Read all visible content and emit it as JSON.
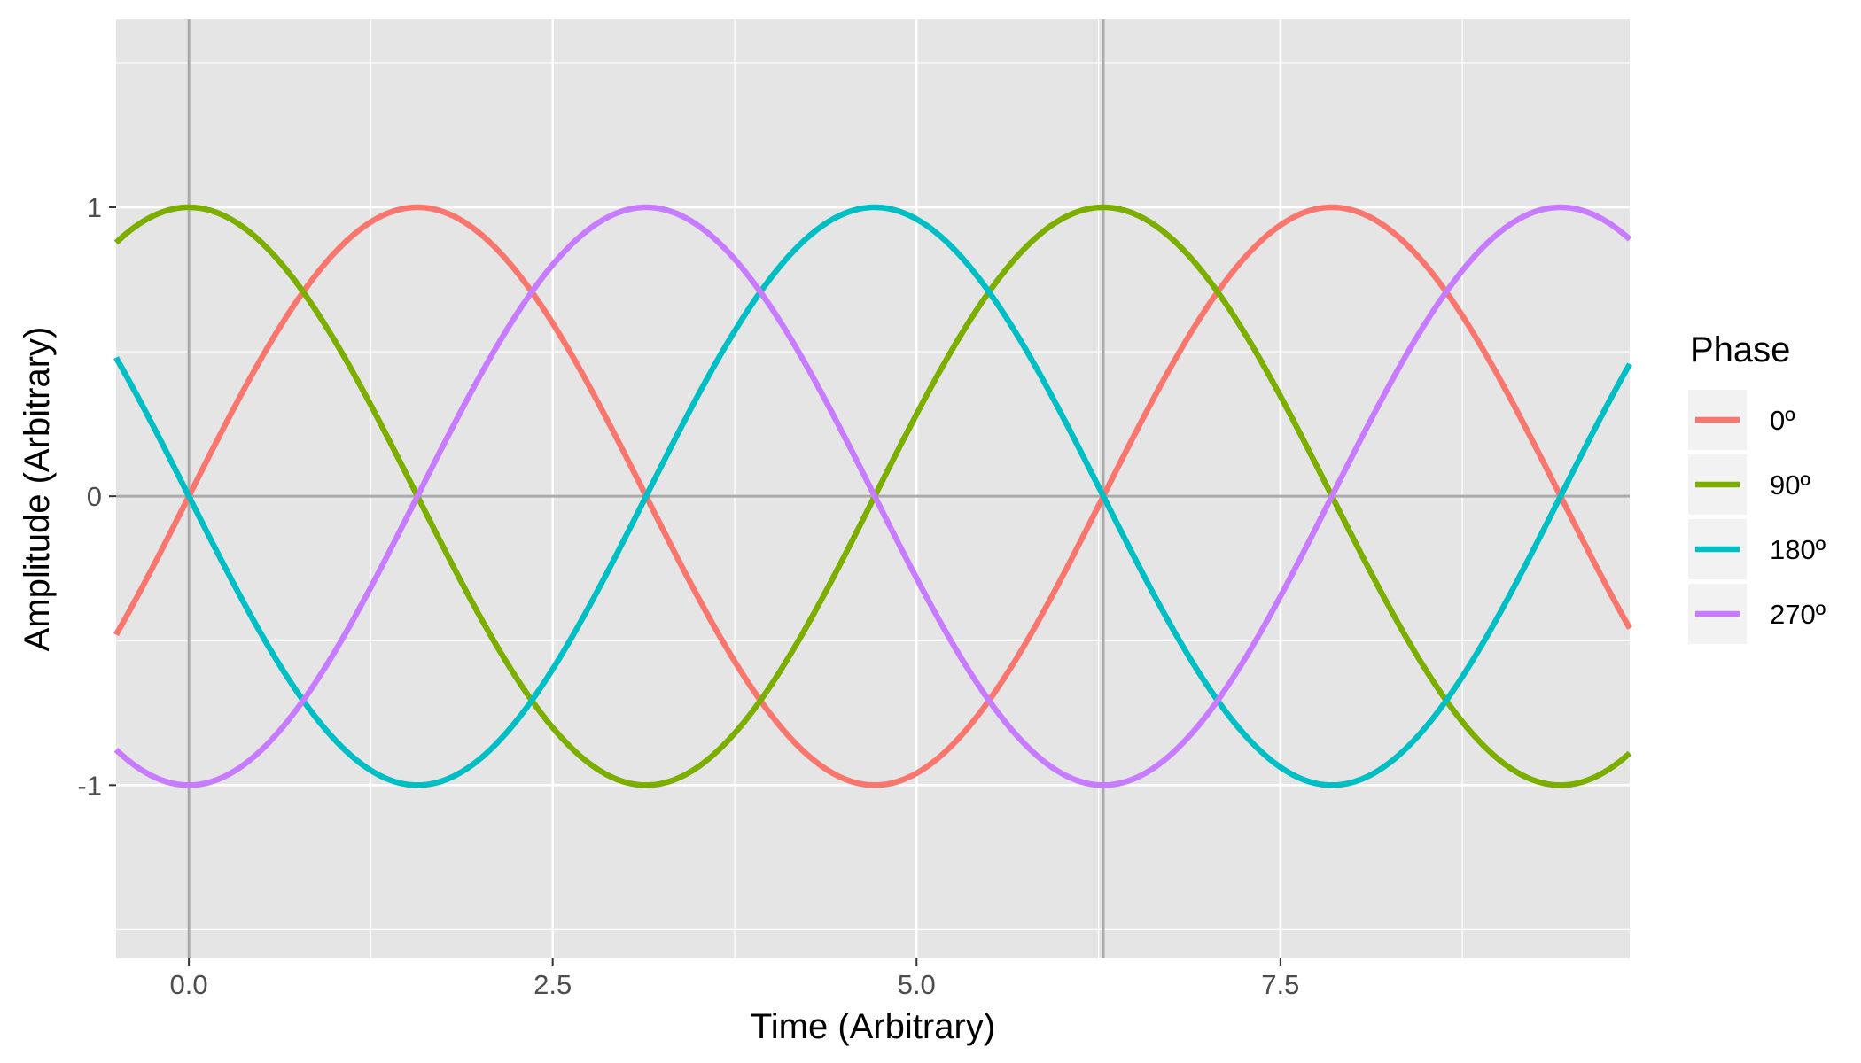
{
  "chart_data": {
    "type": "line",
    "title": "",
    "xlabel": "Time (Arbitrary)",
    "ylabel": "Amplitude (Arbitrary)",
    "xlim": [
      -0.5,
      9.9
    ],
    "ylim": [
      -1.6,
      1.65
    ],
    "x_ticks": [
      0.0,
      2.5,
      5.0,
      7.5
    ],
    "x_tick_labels": [
      "0.0",
      "2.5",
      "5.0",
      "7.5"
    ],
    "y_ticks": [
      -1,
      0,
      1
    ],
    "y_tick_labels": [
      "-1",
      "0",
      "1"
    ],
    "grid": true,
    "background": "#e5e5e5",
    "reference_lines": {
      "vertical_x": [
        0,
        6.283
      ],
      "horizontal_y": [
        0
      ],
      "color": "#aaaaaa"
    },
    "curve": "sine",
    "x_range": [
      -0.5,
      9.9
    ],
    "series": [
      {
        "name": "0º",
        "phase_deg": 0,
        "color": "#F8766D"
      },
      {
        "name": "90º",
        "phase_deg": 90,
        "color": "#7CAE00"
      },
      {
        "name": "180º",
        "phase_deg": 180,
        "color": "#00BFC4"
      },
      {
        "name": "270º",
        "phase_deg": 270,
        "color": "#C77CFF"
      }
    ],
    "legend": {
      "title": "Phase",
      "position": "right"
    }
  }
}
